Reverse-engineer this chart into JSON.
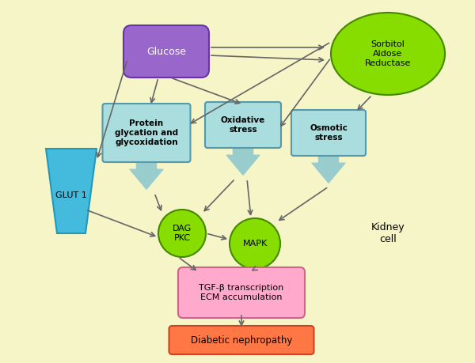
{
  "bg_color": "#f5f5c8",
  "kidney_color": "#8B0000",
  "kidney_cell_label": "Kidney\ncell",
  "glucose_label": "Glucose",
  "sorbitol_label": "Sorbitol\nAldose\nReductase",
  "protein_glycation_label": "Protein\nglycation and\nglycoxidation",
  "oxidative_stress_label": "Oxidative\nstress",
  "osmotic_stress_label": "Osmotic\nstress",
  "glut1_label": "GLUT 1",
  "dag_pkc_label": "DAG\nPKC",
  "mapk_label": "MAPK",
  "tgf_label": "TGF-β transcription\nECM accumulation",
  "diabetic_label": "Diabetic nephropathy",
  "glucose_color": "#9966cc",
  "glucose_light": "#cc99ff",
  "sorbitol_color": "#88dd00",
  "sorbitol_light": "#ccff66",
  "box_color": "#aadddd",
  "box_edge": "#5599aa",
  "glut1_color": "#44bbdd",
  "glut1_light": "#88eeff",
  "dag_color": "#88dd00",
  "mapk_color": "#88dd00",
  "tgf_color": "#ffaacc",
  "tgf_edge": "#cc6688",
  "diabetic_color": "#ff7744",
  "diabetic_edge": "#cc4422",
  "arrow_color": "#666666",
  "thick_arrow_color": "#99cccc"
}
